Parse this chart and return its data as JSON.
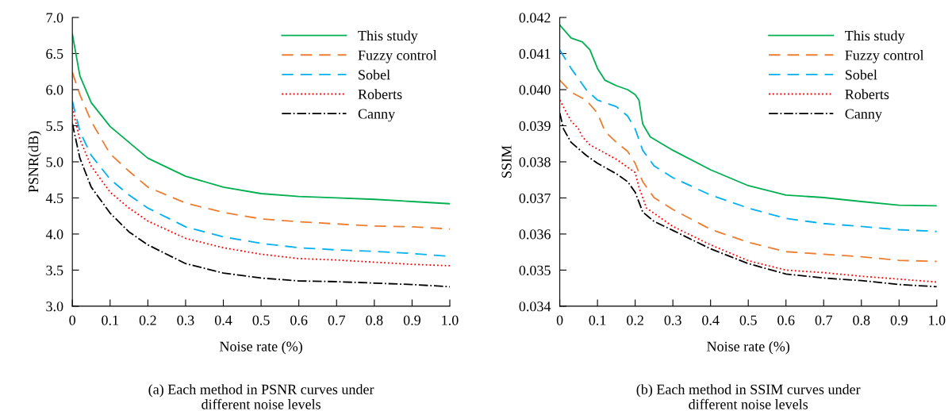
{
  "chart_data": [
    {
      "type": "line",
      "xlabel": "Noise rate (%)",
      "ylabel": "PSNR(dB)",
      "legend": "top right",
      "grid": false,
      "marker": "none",
      "x": [
        0,
        0.02,
        0.05,
        0.1,
        0.15,
        0.2,
        0.3,
        0.4,
        0.5,
        0.6,
        0.7,
        0.8,
        0.9,
        1.0
      ],
      "xlim": [
        0,
        1.0
      ],
      "xticks": [
        0,
        0.1,
        0.2,
        0.3,
        0.4,
        0.5,
        0.6,
        0.7,
        0.8,
        0.9,
        {
          "value": 1.0,
          "label": "1.0"
        }
      ],
      "ylim": [
        3.0,
        7.0
      ],
      "yticks": [
        {
          "value": 3.0,
          "label": "3.0"
        },
        3.5,
        {
          "value": 4.0,
          "label": "4.0"
        },
        4.5,
        {
          "value": 5.0,
          "label": "5.0"
        },
        5.5,
        {
          "value": 6.0,
          "label": "6.0"
        },
        6.5,
        {
          "value": 7.0,
          "label": "7.0"
        }
      ],
      "annotations": [
        "(a) Each method in PSNR curves under\ndifferent noise levels"
      ],
      "series": [
        {
          "name": "This study",
          "color": "#00b050",
          "line_style": "solid",
          "values": [
            6.77,
            6.19,
            5.82,
            5.49,
            5.27,
            5.05,
            4.8,
            4.65,
            4.56,
            4.52,
            4.5,
            4.48,
            4.45,
            4.42
          ]
        },
        {
          "name": "Fuzzy control",
          "color": "#ed7d31",
          "line_style": "dashed",
          "values": [
            6.24,
            5.93,
            5.56,
            5.11,
            4.87,
            4.65,
            4.43,
            4.3,
            4.21,
            4.17,
            4.14,
            4.11,
            4.1,
            4.07
          ]
        },
        {
          "name": "Sobel",
          "color": "#00b0f0",
          "line_style": "dashed",
          "values": [
            5.84,
            5.42,
            5.09,
            4.76,
            4.54,
            4.36,
            4.1,
            3.96,
            3.87,
            3.81,
            3.78,
            3.76,
            3.73,
            3.69
          ]
        },
        {
          "name": "Roberts",
          "color": "#ff0000",
          "line_style": "dotted",
          "values": [
            5.75,
            5.31,
            4.94,
            4.58,
            4.36,
            4.18,
            3.94,
            3.81,
            3.72,
            3.66,
            3.64,
            3.61,
            3.58,
            3.56
          ]
        },
        {
          "name": "Canny",
          "color": "#000000",
          "line_style": "dashdot",
          "values": [
            5.53,
            5.05,
            4.65,
            4.29,
            4.03,
            3.85,
            3.59,
            3.46,
            3.39,
            3.35,
            3.34,
            3.32,
            3.3,
            3.27
          ]
        }
      ]
    },
    {
      "type": "line",
      "xlabel": "Noise rate (%)",
      "ylabel": "SSIM",
      "legend": "top right",
      "grid": false,
      "marker": "none",
      "xlim": [
        0,
        1.0
      ],
      "xticks": [
        0,
        0.1,
        0.2,
        0.3,
        0.4,
        0.5,
        0.6,
        0.7,
        0.8,
        0.9,
        {
          "value": 1.0,
          "label": "1.0"
        }
      ],
      "ylim": [
        0.034,
        0.042
      ],
      "yticks": [
        0.034,
        0.035,
        0.036,
        0.037,
        0.038,
        0.039,
        {
          "value": 0.04,
          "label": "0.040"
        },
        0.041,
        0.042
      ],
      "annotations": [
        "(b) Each method in SSIM curves under\ndifferent noise levels"
      ],
      "series": [
        {
          "name": "This study",
          "color": "#00b050",
          "line_style": "solid",
          "x": [
            0,
            0.03,
            0.06,
            0.08,
            0.1,
            0.12,
            0.15,
            0.18,
            0.2,
            0.21,
            0.22,
            0.24,
            0.3,
            0.4,
            0.5,
            0.6,
            0.7,
            0.8,
            0.9,
            1.0
          ],
          "values": [
            0.04179,
            0.04143,
            0.04132,
            0.0411,
            0.04059,
            0.04026,
            0.04011,
            0.04,
            0.03986,
            0.03971,
            0.03905,
            0.03869,
            0.03832,
            0.03778,
            0.03734,
            0.03708,
            0.03701,
            0.0369,
            0.0368,
            0.03678
          ]
        },
        {
          "name": "Fuzzy control",
          "color": "#ed7d31",
          "line_style": "dashed",
          "x": [
            0,
            0.03,
            0.07,
            0.1,
            0.12,
            0.15,
            0.18,
            0.2,
            0.22,
            0.25,
            0.3,
            0.4,
            0.5,
            0.6,
            0.7,
            0.8,
            0.9,
            1.0
          ],
          "values": [
            0.04026,
            0.03993,
            0.03971,
            0.03935,
            0.03884,
            0.03854,
            0.03829,
            0.03796,
            0.03745,
            0.03701,
            0.03668,
            0.03613,
            0.03577,
            0.03551,
            0.03544,
            0.03537,
            0.03527,
            0.03524
          ]
        },
        {
          "name": "Sobel",
          "color": "#00b0f0",
          "line_style": "dashed",
          "x": [
            0,
            0.03,
            0.07,
            0.1,
            0.15,
            0.18,
            0.2,
            0.22,
            0.25,
            0.3,
            0.4,
            0.5,
            0.6,
            0.7,
            0.8,
            0.9,
            1.0
          ],
          "values": [
            0.0411,
            0.04059,
            0.04,
            0.03971,
            0.03953,
            0.03927,
            0.03891,
            0.03832,
            0.03789,
            0.03756,
            0.03708,
            0.03672,
            0.03643,
            0.03629,
            0.03621,
            0.03612,
            0.03607
          ]
        },
        {
          "name": "Roberts",
          "color": "#ff0000",
          "line_style": "dotted",
          "x": [
            0,
            0.03,
            0.05,
            0.06,
            0.08,
            0.15,
            0.2,
            0.21,
            0.23,
            0.3,
            0.4,
            0.5,
            0.6,
            0.7,
            0.8,
            0.9,
            1.0
          ],
          "values": [
            0.03971,
            0.03913,
            0.03891,
            0.03869,
            0.03847,
            0.03807,
            0.0377,
            0.0373,
            0.03672,
            0.03621,
            0.0357,
            0.03526,
            0.035,
            0.03493,
            0.03483,
            0.03475,
            0.03467
          ]
        },
        {
          "name": "Canny",
          "color": "#000000",
          "line_style": "dashdot",
          "x": [
            0,
            0.01,
            0.03,
            0.07,
            0.1,
            0.15,
            0.18,
            0.2,
            0.22,
            0.25,
            0.3,
            0.4,
            0.5,
            0.6,
            0.7,
            0.8,
            0.9,
            1.0
          ],
          "values": [
            0.03935,
            0.03891,
            0.03854,
            0.03818,
            0.03796,
            0.03767,
            0.03745,
            0.03716,
            0.03661,
            0.03635,
            0.0361,
            0.03559,
            0.03518,
            0.03489,
            0.03478,
            0.03471,
            0.0346,
            0.03454
          ]
        }
      ]
    }
  ]
}
